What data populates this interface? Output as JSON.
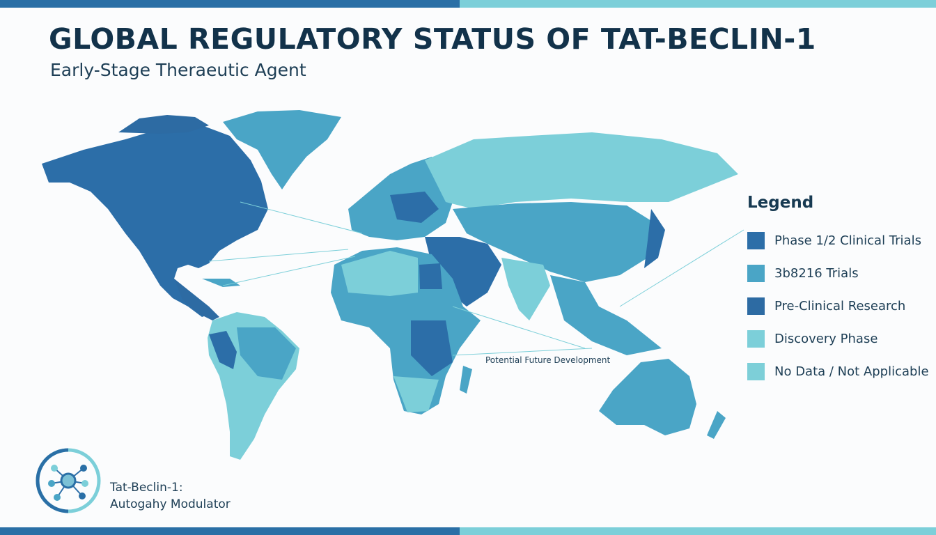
{
  "header": {
    "title": "GLOBAL REGULATORY STATUS OF TAT-BECLIN-1",
    "subtitle": "Early-Stage Theraeutic Agent"
  },
  "legend": {
    "title": "Legend",
    "items": [
      {
        "label": "Phase 1/2 Clinical Trials",
        "color": "#2c6ea8"
      },
      {
        "label": "3b8216 Trials",
        "color": "#4aa5c6"
      },
      {
        "label": "Pre-Clinical Research",
        "color": "#2d6ba3"
      },
      {
        "label": "Discovery Phase",
        "color": "#7ccfd9"
      },
      {
        "label": "No Data / Not Applicable",
        "color": "#7dcfd8"
      }
    ]
  },
  "annotation": "Potential Future Development",
  "brand": {
    "line1": "Tat-Beclin-1:",
    "line2": "Autogahy Modulator",
    "icon": "molecule-network-icon"
  },
  "colors": {
    "dark": "#2c6ea8",
    "mid": "#4aa5c6",
    "light": "#7ccfd9",
    "bar_dark": "#2a6fa6",
    "bar_light": "#7ccfd9"
  }
}
